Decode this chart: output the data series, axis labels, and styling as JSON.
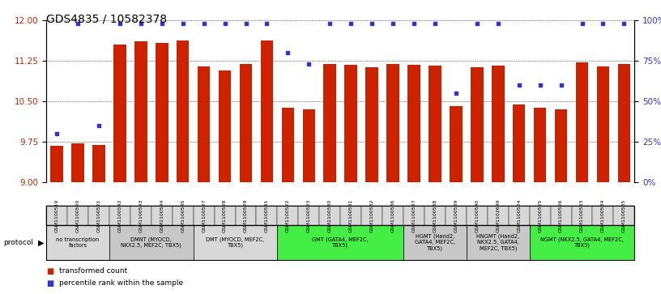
{
  "title": "GDS4835 / 10582378",
  "samples": [
    "GSM1100519",
    "GSM1100520",
    "GSM1100521",
    "GSM1100542",
    "GSM1100543",
    "GSM1100544",
    "GSM1100545",
    "GSM1100527",
    "GSM1100528",
    "GSM1100529",
    "GSM1100541",
    "GSM1100522",
    "GSM1100523",
    "GSM1100530",
    "GSM1100531",
    "GSM1100532",
    "GSM1100536",
    "GSM1100537",
    "GSM1100538",
    "GSM1100539",
    "GSM1100540",
    "GSM1102649",
    "GSM1100524",
    "GSM1100525",
    "GSM1100526",
    "GSM1100533",
    "GSM1100534",
    "GSM1100535"
  ],
  "bar_values": [
    9.68,
    9.72,
    9.69,
    11.55,
    11.62,
    11.59,
    11.63,
    11.15,
    11.08,
    11.2,
    11.63,
    10.38,
    10.35,
    11.2,
    11.18,
    11.13,
    11.2,
    11.18,
    11.16,
    10.42,
    11.13,
    11.17,
    10.45,
    10.38,
    10.35,
    11.22,
    11.15,
    11.2
  ],
  "percentile_values": [
    30,
    98,
    35,
    98,
    98,
    98,
    98,
    98,
    98,
    98,
    98,
    80,
    73,
    98,
    98,
    98,
    98,
    98,
    98,
    55,
    98,
    98,
    60,
    60,
    60,
    98,
    98,
    98
  ],
  "bar_color": "#cc2200",
  "dot_color": "#3333cc",
  "ylim_left": [
    9.0,
    12.0
  ],
  "yticks_left": [
    9.0,
    9.75,
    10.5,
    11.25,
    12.0
  ],
  "yticks_right": [
    0,
    25,
    50,
    75,
    100
  ],
  "protocols": [
    {
      "label": "no transcription\nfactors",
      "count": 3,
      "color": "#d8d8d8"
    },
    {
      "label": "DMNT (MYOCD,\nNKX2.5, MEF2C, TBX5)",
      "count": 4,
      "color": "#c8c8c8"
    },
    {
      "label": "DMT (MYOCD, MEF2C,\nTBX5)",
      "count": 4,
      "color": "#d8d8d8"
    },
    {
      "label": "GMT (GATA4, MEF2C,\nTBX5)",
      "count": 6,
      "color": "#44ee44"
    },
    {
      "label": "HGMT (Hand2,\nGATA4, MEF2C,\nTBX5)",
      "count": 3,
      "color": "#c8c8c8"
    },
    {
      "label": "HNGMT (Hand2,\nNKX2.5, GATA4,\nMEF2C, TBX5)",
      "count": 3,
      "color": "#c8c8c8"
    },
    {
      "label": "NGMT (NKX2.5, GATA4, MEF2C,\nTBX5)",
      "count": 5,
      "color": "#44ee44"
    }
  ],
  "background_color": "#ffffff",
  "title_fontsize": 10,
  "bar_width": 0.6
}
